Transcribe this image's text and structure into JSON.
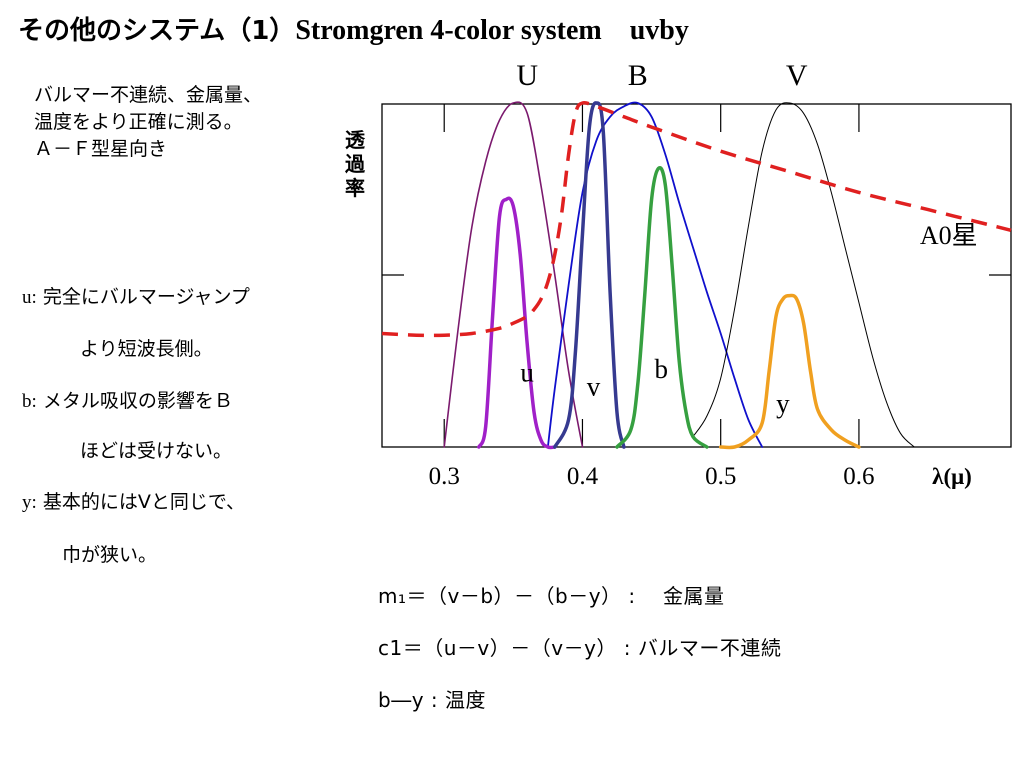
{
  "title": {
    "jp": "その他のシステム（1）",
    "en": "Stromgren 4-color system　uvby"
  },
  "note_lines": [
    "バルマー不連続、金属量、",
    "温度をより正確に測る。",
    "Ａ－Ｆ型星向き"
  ],
  "descriptions": [
    {
      "key": "u:",
      "text": " 完全にバルマージャンプ"
    },
    {
      "key": "",
      "text": "より短波長側。"
    },
    {
      "key": "b:",
      "text": "  メタル吸収の影響をＢ"
    },
    {
      "key": "",
      "text": "ほどは受けない。"
    },
    {
      "key": "y:",
      "text": " 基本的にはVと同じで、"
    },
    {
      "key": "",
      "text": "巾が狭い。"
    }
  ],
  "ylabel_chars": [
    "透",
    "過",
    "率"
  ],
  "formulas": [
    "m₁＝（v－b）－（b－y）  :　 金属量",
    "c1＝（u－v）－（v－y）  :  バルマー不連続",
    "b―y  :  温度"
  ],
  "chart_data": {
    "type": "line",
    "title": "",
    "xlabel": "λ(μ)",
    "ylabel": "透過率",
    "xlim": [
      0.255,
      0.71
    ],
    "ylim": [
      0,
      1.0
    ],
    "x_ticks": [
      0.3,
      0.4,
      0.5,
      0.6
    ],
    "x_tick_labels": [
      "0.3",
      "0.4",
      "0.5",
      "0.6"
    ],
    "band_labels_top": [
      {
        "label": "U",
        "x": 0.36
      },
      {
        "label": "B",
        "x": 0.44
      },
      {
        "label": "V",
        "x": 0.555
      }
    ],
    "annotation": {
      "text": "A0星",
      "x": 0.665,
      "y": 0.59
    },
    "series": [
      {
        "name": "U",
        "color": "#7b1a6e",
        "width": 1.6,
        "dash": false,
        "x": [
          0.3,
          0.31,
          0.32,
          0.33,
          0.34,
          0.35,
          0.36,
          0.37,
          0.38,
          0.39,
          0.4
        ],
        "y": [
          0.0,
          0.34,
          0.64,
          0.83,
          0.95,
          1.0,
          0.97,
          0.76,
          0.5,
          0.22,
          0.0
        ]
      },
      {
        "name": "B",
        "color": "#1010cc",
        "width": 1.8,
        "dash": false,
        "x": [
          0.375,
          0.38,
          0.39,
          0.4,
          0.41,
          0.42,
          0.43,
          0.44,
          0.45,
          0.46,
          0.47,
          0.48,
          0.49,
          0.5,
          0.51,
          0.52,
          0.53
        ],
        "y": [
          0.0,
          0.17,
          0.47,
          0.74,
          0.89,
          0.96,
          0.99,
          1.0,
          0.96,
          0.85,
          0.71,
          0.58,
          0.45,
          0.33,
          0.2,
          0.08,
          0.0
        ]
      },
      {
        "name": "V",
        "color": "#000000",
        "width": 1.0,
        "dash": false,
        "x": [
          0.48,
          0.49,
          0.5,
          0.51,
          0.52,
          0.53,
          0.54,
          0.55,
          0.56,
          0.57,
          0.58,
          0.59,
          0.6,
          0.61,
          0.62,
          0.63,
          0.64
        ],
        "y": [
          0.03,
          0.09,
          0.2,
          0.4,
          0.64,
          0.86,
          0.98,
          1.0,
          0.97,
          0.88,
          0.74,
          0.58,
          0.42,
          0.26,
          0.13,
          0.04,
          0.0
        ]
      },
      {
        "name": "u",
        "color": "#a020c8",
        "width": 3.5,
        "dash": false,
        "x": [
          0.325,
          0.33,
          0.335,
          0.34,
          0.345,
          0.35,
          0.355,
          0.36,
          0.365,
          0.37,
          0.375,
          0.38
        ],
        "y": [
          0.0,
          0.06,
          0.38,
          0.67,
          0.72,
          0.7,
          0.56,
          0.3,
          0.1,
          0.02,
          0.0,
          0.0
        ]
      },
      {
        "name": "v",
        "color": "#363a90",
        "width": 3.5,
        "dash": false,
        "x": [
          0.38,
          0.39,
          0.395,
          0.4,
          0.405,
          0.41,
          0.415,
          0.42,
          0.425,
          0.43
        ],
        "y": [
          0.0,
          0.08,
          0.28,
          0.62,
          0.93,
          1.0,
          0.92,
          0.45,
          0.1,
          0.0
        ]
      },
      {
        "name": "b",
        "color": "#36a040",
        "width": 3.5,
        "dash": false,
        "x": [
          0.425,
          0.435,
          0.44,
          0.445,
          0.45,
          0.455,
          0.46,
          0.465,
          0.47,
          0.475,
          0.48,
          0.49
        ],
        "y": [
          0.0,
          0.05,
          0.18,
          0.44,
          0.72,
          0.81,
          0.76,
          0.52,
          0.25,
          0.1,
          0.03,
          0.0
        ]
      },
      {
        "name": "y",
        "color": "#f0a020",
        "width": 3.5,
        "dash": false,
        "x": [
          0.5,
          0.51,
          0.52,
          0.53,
          0.535,
          0.54,
          0.545,
          0.55,
          0.555,
          0.56,
          0.565,
          0.57,
          0.58,
          0.59,
          0.6
        ],
        "y": [
          0.0,
          0.0,
          0.02,
          0.07,
          0.22,
          0.38,
          0.43,
          0.44,
          0.43,
          0.36,
          0.22,
          0.11,
          0.05,
          0.02,
          0.0
        ]
      },
      {
        "name": "A0星",
        "color": "#e02020",
        "width": 3.5,
        "dash": true,
        "x": [
          0.255,
          0.28,
          0.3,
          0.32,
          0.34,
          0.35,
          0.36,
          0.365,
          0.37,
          0.375,
          0.38,
          0.385,
          0.39,
          0.395,
          0.4,
          0.41,
          0.43,
          0.45,
          0.5,
          0.55,
          0.6,
          0.65,
          0.7,
          0.71
        ],
        "y": [
          0.33,
          0.325,
          0.325,
          0.33,
          0.345,
          0.36,
          0.38,
          0.4,
          0.43,
          0.48,
          0.56,
          0.68,
          0.85,
          0.97,
          1.0,
          0.99,
          0.96,
          0.93,
          0.86,
          0.8,
          0.74,
          0.69,
          0.64,
          0.63
        ]
      }
    ],
    "band_letters": [
      {
        "label": "u",
        "x": 0.36,
        "y": 0.19
      },
      {
        "label": "v",
        "x": 0.408,
        "y": 0.15
      },
      {
        "label": "b",
        "x": 0.457,
        "y": 0.2
      },
      {
        "label": "y",
        "x": 0.545,
        "y": 0.1
      }
    ]
  }
}
